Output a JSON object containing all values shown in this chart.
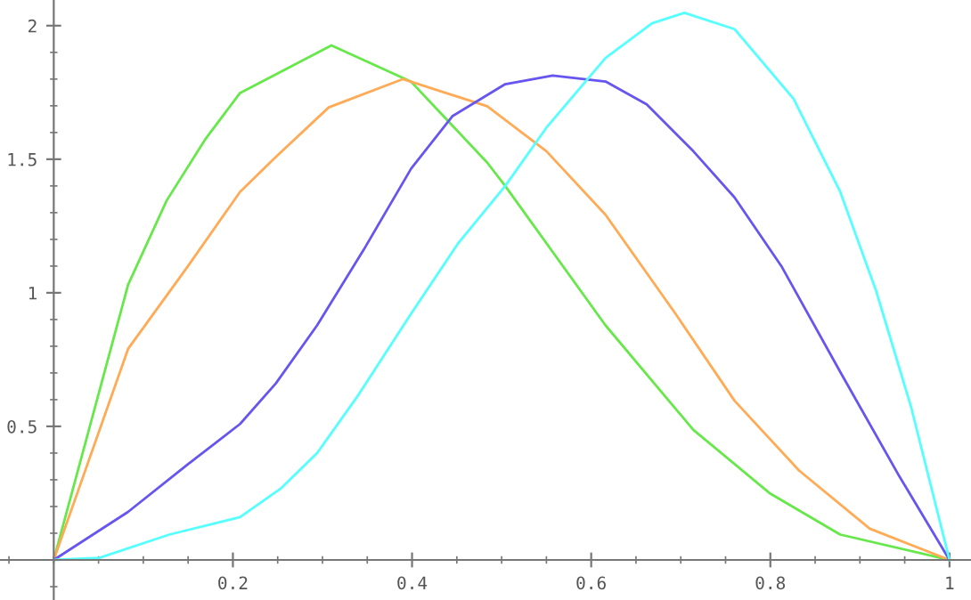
{
  "chart_data": {
    "type": "line",
    "xlim": [
      -0.06,
      1.024
    ],
    "ylim": [
      -0.15,
      2.096
    ],
    "xticks": [
      0.2,
      0.4,
      0.6,
      0.8,
      1
    ],
    "yticks": [
      0.5,
      1,
      1.5,
      2
    ],
    "grid": false,
    "legend": false,
    "series": [
      {
        "color": "#66e84a",
        "x": [
          0,
          0.083,
          0.126,
          0.169,
          0.208,
          0.31,
          0.399,
          0.484,
          0.504,
          0.616,
          0.714,
          0.8,
          0.878,
          1
        ],
        "values": [
          0,
          1.03,
          1.345,
          1.574,
          1.748,
          1.926,
          1.79,
          1.487,
          1.4,
          0.878,
          0.487,
          0.248,
          0.095,
          0
        ]
      },
      {
        "color": "#ffaa55",
        "x": [
          0,
          0.083,
          0.149,
          0.208,
          0.248,
          0.307,
          0.39,
          0.484,
          0.55,
          0.616,
          0.694,
          0.76,
          0.832,
          0.911,
          1
        ],
        "values": [
          0,
          0.79,
          1.096,
          1.378,
          1.509,
          1.694,
          1.8,
          1.698,
          1.53,
          1.292,
          0.922,
          0.596,
          0.335,
          0.117,
          0
        ]
      },
      {
        "color": "#6655ee",
        "x": [
          0,
          0.083,
          0.149,
          0.208,
          0.248,
          0.294,
          0.346,
          0.399,
          0.445,
          0.504,
          0.557,
          0.616,
          0.662,
          0.714,
          0.76,
          0.813,
          0.878,
          0.944,
          1
        ],
        "values": [
          0,
          0.18,
          0.356,
          0.509,
          0.661,
          0.878,
          1.161,
          1.465,
          1.661,
          1.781,
          1.813,
          1.791,
          1.705,
          1.53,
          1.357,
          1.096,
          0.704,
          0.313,
          0
        ]
      },
      {
        "color": "#55ffff",
        "x": [
          0,
          0.051,
          0.129,
          0.208,
          0.254,
          0.294,
          0.34,
          0.399,
          0.451,
          0.504,
          0.55,
          0.616,
          0.668,
          0.704,
          0.76,
          0.826,
          0.878,
          0.918,
          0.957,
          1
        ],
        "values": [
          0,
          0.008,
          0.095,
          0.16,
          0.269,
          0.4,
          0.617,
          0.922,
          1.183,
          1.4,
          1.618,
          1.879,
          2.009,
          2.048,
          1.987,
          1.726,
          1.378,
          1.008,
          0.574,
          0
        ]
      }
    ]
  }
}
